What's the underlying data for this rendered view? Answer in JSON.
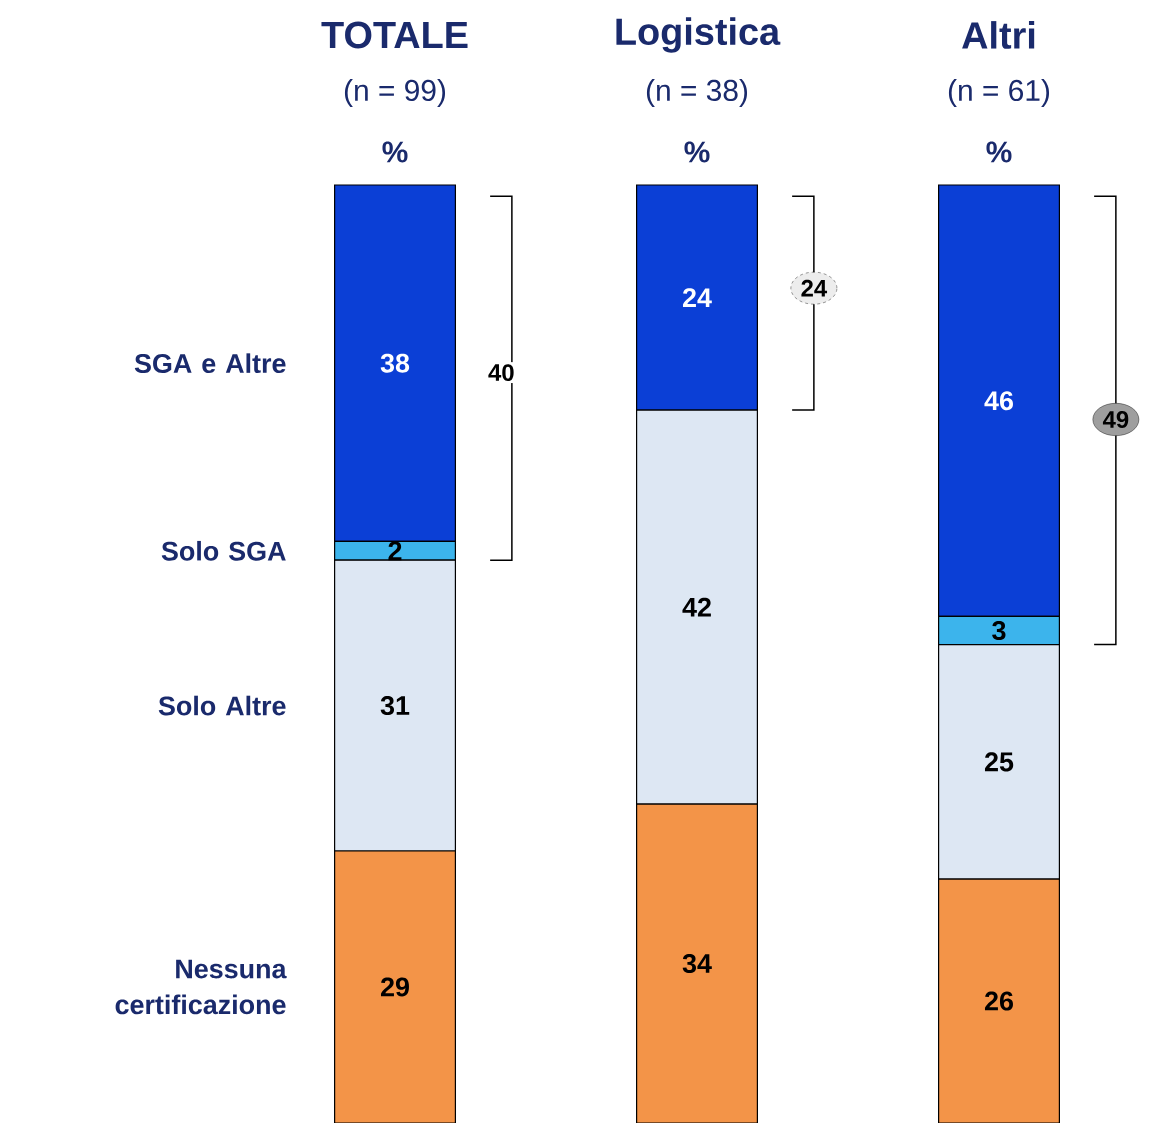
{
  "chart_data": {
    "type": "bar",
    "stacked": true,
    "categories": [
      "TOTALE",
      "Logistica",
      "Altri"
    ],
    "series": [
      {
        "name": "Nessuna certificazione",
        "color": "#f39448",
        "values": [
          29,
          34,
          26
        ],
        "value_labels": [
          "29",
          "34",
          "26"
        ]
      },
      {
        "name": "Solo Altre",
        "color": "#dde7f3",
        "values": [
          31,
          42,
          25
        ],
        "value_labels": [
          "31",
          "42",
          "25"
        ]
      },
      {
        "name": "Solo SGA",
        "color": "#3cb4ec",
        "values": [
          2,
          0,
          3
        ],
        "value_labels": [
          "2",
          null,
          "3"
        ]
      },
      {
        "name": "SGA e Altre",
        "color": "#0b3fd6",
        "values": [
          38,
          24,
          46
        ],
        "value_labels": [
          "38",
          "24",
          "46"
        ]
      }
    ],
    "annotations": [
      "(n = 99)",
      "(n = 38)",
      "(n = 61)",
      "%",
      "%",
      "%",
      "40",
      "24",
      "49"
    ]
  }
}
